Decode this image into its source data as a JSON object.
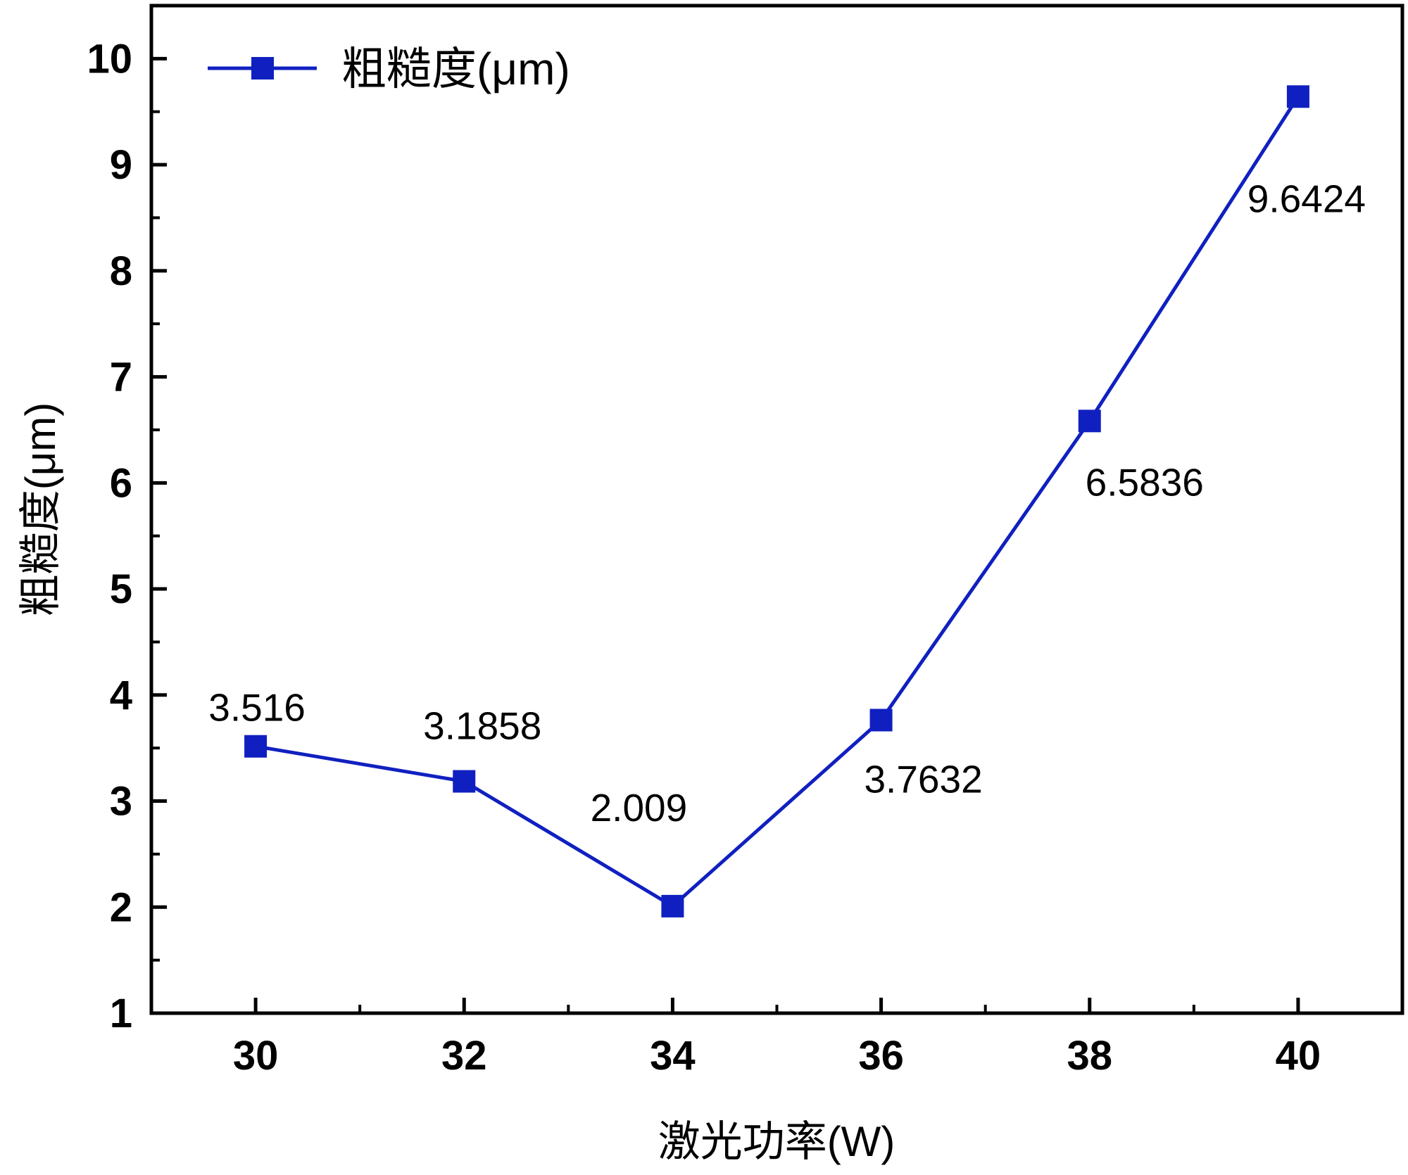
{
  "chart_data": {
    "type": "line",
    "title": "",
    "xlabel": "激光功率(W)",
    "ylabel": "粗糙度(μm)",
    "xlim": [
      29,
      41
    ],
    "ylim": [
      1,
      10.5
    ],
    "xticks": [
      30,
      32,
      34,
      36,
      38,
      40
    ],
    "yticks": [
      1,
      2,
      3,
      4,
      5,
      6,
      7,
      8,
      9,
      10
    ],
    "grid": false,
    "legend_position": "top-left",
    "series": [
      {
        "name": "粗糙度(μm)",
        "color": "#1020C0",
        "marker": "square",
        "x": [
          30,
          32,
          34,
          36,
          38,
          40
        ],
        "y": [
          3.516,
          3.1858,
          2.009,
          3.7632,
          6.5836,
          9.6424
        ],
        "data_labels": [
          "3.516",
          "3.1858",
          "2.009",
          "3.7632",
          "6.5836",
          "9.6424"
        ]
      }
    ]
  }
}
